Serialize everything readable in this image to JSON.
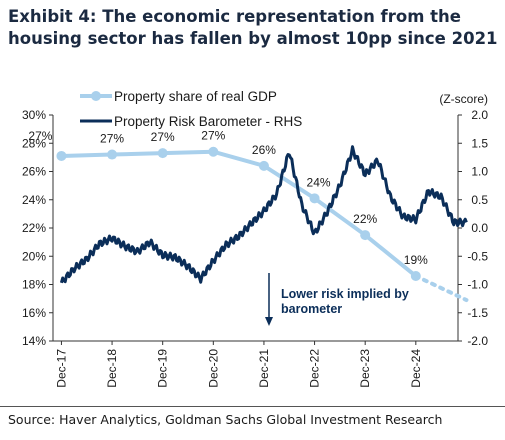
{
  "title": "Exhibit 4: The economic representation from the housing sector has fallen by almost 10pp since 2021",
  "source": "Source: Haver Analytics, Goldman Sachs Global Investment Research",
  "colors": {
    "gdp_line": "#a9d0ec",
    "barometer_line": "#0b2e59",
    "annotation": "#0b2e59",
    "axis": "#333333"
  },
  "chart_data": {
    "type": "line",
    "legend_placement": "top-left",
    "grid": false,
    "x_ticks": [
      "Dec-17",
      "Dec-18",
      "Dec-19",
      "Dec-20",
      "Dec-21",
      "Dec-22",
      "Dec-23",
      "Dec-24"
    ],
    "x_range": [
      2017.75,
      2025.75
    ],
    "y_left": {
      "range": [
        14,
        30
      ],
      "ticks": [
        "14%",
        "16%",
        "18%",
        "20%",
        "22%",
        "24%",
        "26%",
        "28%",
        "30%"
      ],
      "tick_values": [
        14,
        16,
        18,
        20,
        22,
        24,
        26,
        28,
        30
      ]
    },
    "y_right": {
      "label": "(Z-score)",
      "range": [
        -2,
        2
      ],
      "ticks": [
        "-2.0",
        "-1.5",
        "-1.0",
        "-0.5",
        "0.0",
        "0.5",
        "1.0",
        "1.5",
        "2.0"
      ],
      "tick_values": [
        -2,
        -1.5,
        -1,
        -0.5,
        0,
        0.5,
        1,
        1.5,
        2
      ]
    },
    "series": [
      {
        "name": "Property share of real GDP",
        "axis": "left",
        "x": [
          "2017-12",
          "2018-12",
          "2019-12",
          "2020-12",
          "2021-12",
          "2022-12",
          "2023-12",
          "2024-12"
        ],
        "values": [
          27.1,
          27.2,
          27.3,
          27.4,
          26.4,
          24.1,
          21.5,
          18.6
        ],
        "point_labels": [
          "27%",
          "27%",
          "27%",
          "27%",
          "26%",
          "24%",
          "22%",
          "19%"
        ],
        "projection": {
          "x": [
            "2024-12",
            "2025-12"
          ],
          "values": [
            18.6,
            16.9
          ]
        }
      },
      {
        "name": "Property Risk Barometer - RHS",
        "axis": "right",
        "x": [
          "2017-12",
          "2018-03",
          "2018-06",
          "2018-09",
          "2018-12",
          "2019-03",
          "2019-06",
          "2019-09",
          "2019-12",
          "2020-03",
          "2020-06",
          "2020-09",
          "2020-12",
          "2021-03",
          "2021-06",
          "2021-09",
          "2021-12",
          "2022-03",
          "2022-06",
          "2022-09",
          "2022-12",
          "2023-03",
          "2023-06",
          "2023-09",
          "2023-12",
          "2024-03",
          "2024-06",
          "2024-09",
          "2024-12",
          "2025-03",
          "2025-06",
          "2025-09",
          "2025-12"
        ],
        "values": [
          -0.97,
          -0.72,
          -0.55,
          -0.28,
          -0.18,
          -0.32,
          -0.42,
          -0.25,
          -0.48,
          -0.52,
          -0.68,
          -0.9,
          -0.58,
          -0.3,
          -0.15,
          0.08,
          0.3,
          0.6,
          1.35,
          0.4,
          -0.1,
          0.28,
          0.75,
          1.38,
          0.95,
          1.2,
          0.55,
          0.2,
          0.15,
          0.65,
          0.55,
          0.1,
          0.1
        ]
      }
    ],
    "annotations": [
      {
        "text_lines": [
          "Lower risk implied by",
          "barometer"
        ],
        "arrow": "down"
      }
    ]
  }
}
